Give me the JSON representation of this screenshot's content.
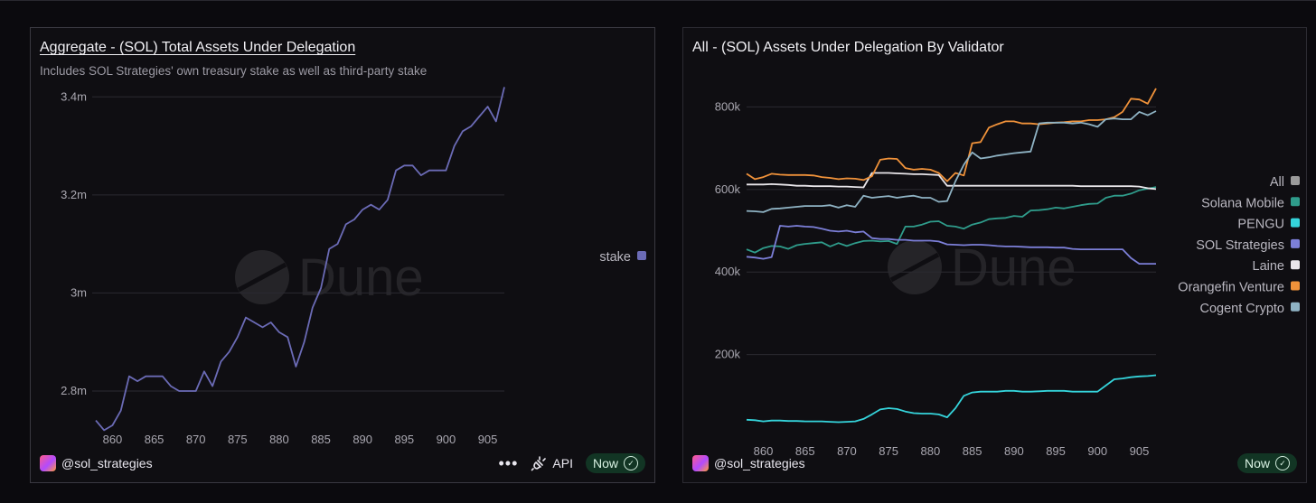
{
  "colors": {
    "stake": "#6b6bb6",
    "all": "#9a9a9a",
    "solana_mobile": "#2f9c8b",
    "pengu": "#35d4db",
    "sol_strategies": "#7c7fd8",
    "laine": "#e9e6ea",
    "orangefin": "#f0923a",
    "cogent": "#8fb3c4"
  },
  "watermark": "Dune",
  "left": {
    "title": "Aggregate - (SOL) Total Assets Under Delegation",
    "subtitle": "Includes SOL Strategies' own treasury stake as well as third-party stake",
    "author": "@sol_strategies",
    "more_label": "•••",
    "api_label": "API",
    "now_label": "Now",
    "legend_label": "stake"
  },
  "right": {
    "title": "All - (SOL) Assets Under Delegation By Validator",
    "author": "@sol_strategies",
    "now_label": "Now"
  },
  "chart_data": [
    {
      "type": "line",
      "title": "Aggregate - (SOL) Total Assets Under Delegation",
      "xlabel": "",
      "ylabel": "",
      "xlim": [
        858,
        907
      ],
      "ylim": [
        2.73,
        3.43
      ],
      "xticks": [
        860,
        865,
        870,
        875,
        880,
        885,
        890,
        895,
        900,
        905
      ],
      "yticks": [
        {
          "v": 2.8,
          "label": "2.8m"
        },
        {
          "v": 3.0,
          "label": "3m"
        },
        {
          "v": 3.2,
          "label": "3.2m"
        },
        {
          "v": 3.4,
          "label": "3.4m"
        }
      ],
      "legend_position": "right",
      "series": [
        {
          "name": "stake",
          "x": [
            858,
            859,
            860,
            861,
            862,
            863,
            864,
            865,
            866,
            867,
            868,
            869,
            870,
            871,
            872,
            873,
            874,
            875,
            876,
            877,
            878,
            879,
            880,
            881,
            882,
            883,
            884,
            885,
            886,
            887,
            888,
            889,
            890,
            891,
            892,
            893,
            894,
            895,
            896,
            897,
            898,
            899,
            900,
            901,
            902,
            903,
            904,
            905,
            906,
            907
          ],
          "values": [
            2.74,
            2.72,
            2.73,
            2.76,
            2.83,
            2.82,
            2.83,
            2.83,
            2.83,
            2.81,
            2.8,
            2.8,
            2.8,
            2.84,
            2.81,
            2.86,
            2.88,
            2.91,
            2.95,
            2.94,
            2.93,
            2.94,
            2.92,
            2.91,
            2.85,
            2.9,
            2.97,
            3.01,
            3.09,
            3.1,
            3.14,
            3.15,
            3.17,
            3.18,
            3.17,
            3.19,
            3.25,
            3.26,
            3.26,
            3.24,
            3.25,
            3.25,
            3.25,
            3.3,
            3.33,
            3.34,
            3.36,
            3.38,
            3.35,
            3.42
          ]
        }
      ]
    },
    {
      "type": "line",
      "title": "All - (SOL) Assets Under Delegation By Validator",
      "xlabel": "",
      "ylabel": "",
      "xlim": [
        858,
        907
      ],
      "ylim": [
        0,
        860000
      ],
      "xticks": [
        860,
        865,
        870,
        875,
        880,
        885,
        890,
        895,
        900,
        905
      ],
      "yticks": [
        {
          "v": 200000,
          "label": "200k"
        },
        {
          "v": 400000,
          "label": "400k"
        },
        {
          "v": 600000,
          "label": "600k"
        },
        {
          "v": 800000,
          "label": "800k"
        }
      ],
      "legend_position": "right",
      "x": [
        858,
        859,
        860,
        861,
        862,
        863,
        864,
        865,
        866,
        867,
        868,
        869,
        870,
        871,
        872,
        873,
        874,
        875,
        876,
        877,
        878,
        879,
        880,
        881,
        882,
        883,
        884,
        885,
        886,
        887,
        888,
        889,
        890,
        891,
        892,
        893,
        894,
        895,
        896,
        897,
        898,
        899,
        900,
        901,
        902,
        903,
        904,
        905,
        906,
        907
      ],
      "series": [
        {
          "name": "All",
          "color_key": "all",
          "values": null
        },
        {
          "name": "Solana Mobile",
          "color_key": "solana_mobile",
          "values": [
            455000,
            447000,
            458000,
            463000,
            462000,
            456000,
            465000,
            468000,
            470000,
            472000,
            462000,
            470000,
            463000,
            470000,
            475000,
            476000,
            474000,
            475000,
            468000,
            510000,
            510000,
            515000,
            522000,
            523000,
            512000,
            510000,
            505000,
            515000,
            520000,
            528000,
            530000,
            531000,
            536000,
            534000,
            549000,
            550000,
            552000,
            556000,
            554000,
            558000,
            562000,
            565000,
            566000,
            580000,
            585000,
            585000,
            590000,
            598000,
            602000,
            606000
          ]
        },
        {
          "name": "PENGU",
          "color_key": "pengu",
          "values": [
            42000,
            41000,
            38000,
            40000,
            40000,
            39000,
            39000,
            38000,
            38000,
            38000,
            37000,
            36000,
            37000,
            38000,
            44000,
            55000,
            67000,
            70000,
            68000,
            62000,
            58000,
            57000,
            57000,
            55000,
            48000,
            70000,
            100000,
            108000,
            110000,
            110000,
            110000,
            112000,
            112000,
            110000,
            110000,
            111000,
            112000,
            112000,
            112000,
            110000,
            110000,
            110000,
            110000,
            125000,
            140000,
            142000,
            145000,
            147000,
            148000,
            150000
          ]
        },
        {
          "name": "SOL Strategies",
          "color_key": "sol_strategies",
          "values": [
            437000,
            435000,
            432000,
            436000,
            512000,
            510000,
            512000,
            510000,
            509000,
            505000,
            500000,
            498000,
            500000,
            496000,
            498000,
            482000,
            480000,
            480000,
            478000,
            478000,
            476000,
            476000,
            476000,
            474000,
            467000,
            466000,
            465000,
            466000,
            466000,
            465000,
            463000,
            462000,
            462000,
            461000,
            460000,
            460000,
            460000,
            459000,
            459000,
            456000,
            455000,
            455000,
            455000,
            455000,
            455000,
            455000,
            434000,
            420000,
            420000,
            420000
          ]
        },
        {
          "name": "Laine",
          "color_key": "laine",
          "values": [
            612000,
            612000,
            612000,
            613000,
            612000,
            611000,
            609000,
            609000,
            608000,
            608000,
            608000,
            607000,
            607000,
            606000,
            605000,
            640000,
            640000,
            640000,
            639000,
            638000,
            637000,
            637000,
            636000,
            635000,
            609000,
            609000,
            609000,
            609000,
            609000,
            609000,
            609000,
            609000,
            609000,
            609000,
            609000,
            609000,
            609000,
            609000,
            609000,
            609000,
            608000,
            608000,
            608000,
            608000,
            608000,
            608000,
            608000,
            607000,
            603000,
            601000
          ]
        },
        {
          "name": "Orangefin Venture",
          "color_key": "orangefin",
          "values": [
            638000,
            625000,
            630000,
            638000,
            636000,
            635000,
            635000,
            635000,
            634000,
            630000,
            628000,
            625000,
            627000,
            626000,
            623000,
            632000,
            672000,
            675000,
            674000,
            652000,
            648000,
            650000,
            648000,
            640000,
            620000,
            640000,
            634000,
            712000,
            715000,
            750000,
            758000,
            765000,
            765000,
            760000,
            760000,
            758000,
            760000,
            762000,
            763000,
            765000,
            765000,
            768000,
            768000,
            770000,
            775000,
            788000,
            820000,
            818000,
            808000,
            845000
          ]
        },
        {
          "name": "Cogent Crypto",
          "color_key": "cogent",
          "values": [
            548000,
            547000,
            545000,
            553000,
            554000,
            556000,
            558000,
            560000,
            560000,
            560000,
            562000,
            556000,
            562000,
            558000,
            585000,
            580000,
            582000,
            584000,
            580000,
            583000,
            585000,
            580000,
            580000,
            570000,
            572000,
            620000,
            660000,
            690000,
            675000,
            678000,
            682000,
            685000,
            688000,
            690000,
            692000,
            760000,
            762000,
            762000,
            762000,
            760000,
            762000,
            758000,
            752000,
            770000,
            772000,
            770000,
            770000,
            788000,
            780000,
            790000
          ]
        }
      ]
    }
  ]
}
